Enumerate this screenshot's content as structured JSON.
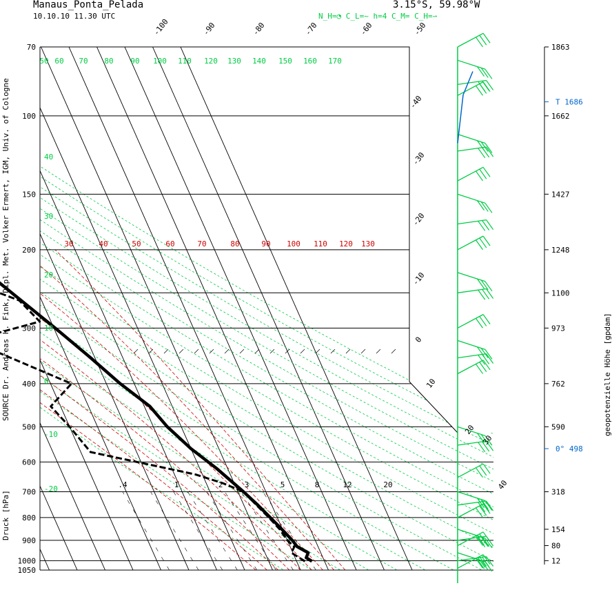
{
  "header": {
    "station": "Manaus_Ponta_Pelada",
    "datetime": "10.10.10 11.30 UTC",
    "coords": "3.15°S, 59.98°W",
    "cloud_info": "N_H=◔  C_L=~  h=4  C_M=   C_H=⇀"
  },
  "side_labels": {
    "source": "SOURCE Dr. Andreas H. Fink, Dipl. Met. Volker Ermert, IGM, Univ. of Cologne",
    "ylabel": "Druck [hPa]",
    "right_label": "geopotenzielle Höhe [gpdam]"
  },
  "colors": {
    "isotherm": "#000000",
    "dry_adiabat": "#00cc44",
    "moist_adiabat": "#cc0000",
    "wind": "#00cc44",
    "tropopause": "#0066cc"
  },
  "chart_data": {
    "type": "line",
    "diagram": "skew-T log-p",
    "pressure_levels": [
      70,
      100,
      150,
      200,
      250,
      300,
      400,
      500,
      600,
      700,
      800,
      900,
      1000,
      1050
    ],
    "pressure_tick_labels": [
      "70",
      "100",
      "150",
      "200",
      "300",
      "400",
      "500",
      "600",
      "700",
      "800",
      "900",
      "1000",
      "1050"
    ],
    "isotherm_labels": [
      "-100",
      "-90",
      "-80",
      "-70",
      "-60",
      "-50",
      "-40",
      "-30",
      "-20",
      "-10",
      "0",
      "10",
      "20",
      "30",
      "40"
    ],
    "theta_labels": [
      "50",
      "60",
      "70",
      "80",
      "90",
      "100",
      "110",
      "120",
      "130",
      "140",
      "150",
      "160",
      "170"
    ],
    "theta_e_labels": [
      "30",
      "40",
      "50",
      "60",
      "70",
      "80",
      "90",
      "100",
      "110",
      "120",
      "130"
    ],
    "mixing_ratio_labels": [
      ".4",
      "1",
      "2",
      "3",
      "5",
      "8",
      "12",
      "20"
    ],
    "left_temp_labels": [
      "40",
      "30",
      "20",
      "10",
      "0",
      "-10",
      "-20"
    ],
    "height_labels": [
      {
        "p": 70,
        "label": "1863"
      },
      {
        "p": 100,
        "label": "1662"
      },
      {
        "p": 150,
        "label": "1427"
      },
      {
        "p": 200,
        "label": "1248"
      },
      {
        "p": 250,
        "label": "1100"
      },
      {
        "p": 300,
        "label": "973"
      },
      {
        "p": 400,
        "label": "762"
      },
      {
        "p": 500,
        "label": "590"
      },
      {
        "p": 700,
        "label": "318"
      },
      {
        "p": 850,
        "label": "154"
      },
      {
        "p": 925,
        "label": "80"
      },
      {
        "p": 1000,
        "label": "12"
      }
    ],
    "tropopause": {
      "p": 93,
      "label": "T 1686"
    },
    "freezing_level": {
      "p": 560,
      "label": "0° 498"
    },
    "series": [
      {
        "kind": "temperature",
        "points": [
          {
            "p": 1003,
            "t": 25.5
          },
          {
            "p": 985,
            "t": 24.0
          },
          {
            "p": 960,
            "t": 25.5
          },
          {
            "p": 930,
            "t": 22.5
          },
          {
            "p": 900,
            "t": 21.8
          },
          {
            "p": 850,
            "t": 19.8
          },
          {
            "p": 800,
            "t": 17.5
          },
          {
            "p": 750,
            "t": 15.0
          },
          {
            "p": 700,
            "t": 12.0
          },
          {
            "p": 620,
            "t": 6.0
          },
          {
            "p": 560,
            "t": 0.0
          },
          {
            "p": 500,
            "t": -5.0
          },
          {
            "p": 450,
            "t": -8.0
          },
          {
            "p": 400,
            "t": -15.0
          },
          {
            "p": 350,
            "t": -21.5
          },
          {
            "p": 300,
            "t": -29.5
          },
          {
            "p": 250,
            "t": -39.5
          },
          {
            "p": 230,
            "t": -44.0
          },
          {
            "p": 200,
            "t": -51.5
          },
          {
            "p": 150,
            "t": -64.5
          },
          {
            "p": 120,
            "t": -72.5
          },
          {
            "p": 100,
            "t": -78.0
          },
          {
            "p": 95,
            "t": -79.0
          },
          {
            "p": 80,
            "t": -72.5
          },
          {
            "p": 75,
            "t": -68.0
          },
          {
            "p": 70,
            "t": -66.5
          }
        ]
      },
      {
        "kind": "dewpoint",
        "points": [
          {
            "p": 1003,
            "t": 23.0
          },
          {
            "p": 985,
            "t": 21.5
          },
          {
            "p": 960,
            "t": 19.5
          },
          {
            "p": 930,
            "t": 21.5
          },
          {
            "p": 900,
            "t": 20.0
          },
          {
            "p": 850,
            "t": 19.0
          },
          {
            "p": 800,
            "t": 17.0
          },
          {
            "p": 750,
            "t": 14.5
          },
          {
            "p": 700,
            "t": 12.0
          },
          {
            "p": 670,
            "t": 6.0
          },
          {
            "p": 640,
            "t": -2.5
          },
          {
            "p": 570,
            "t": -36.5
          },
          {
            "p": 500,
            "t": -40.0
          },
          {
            "p": 450,
            "t": -43.5
          },
          {
            "p": 400,
            "t": -32.5
          },
          {
            "p": 320,
            "t": -62.0
          },
          {
            "p": 290,
            "t": -34.0
          },
          {
            "p": 260,
            "t": -38.0
          },
          {
            "p": 250,
            "t": -44.0
          },
          {
            "p": 240,
            "t": -54.0
          },
          {
            "p": 235,
            "t": -44.5
          },
          {
            "p": 225,
            "t": -46.0
          },
          {
            "p": 200,
            "t": -58.0
          },
          {
            "p": 170,
            "t": -67.0
          },
          {
            "p": 150,
            "t": -75.5
          },
          {
            "p": 110,
            "t": -86.0
          },
          {
            "p": 100,
            "t": -88.0
          },
          {
            "p": 95,
            "t": -88.5
          },
          {
            "p": 80,
            "t": -84.5
          },
          {
            "p": 72,
            "t": -83.0
          },
          {
            "p": 70,
            "t": -81.0
          }
        ]
      }
    ],
    "wind_levels": [
      70,
      75,
      85,
      90,
      110,
      120,
      140,
      150,
      175,
      200,
      225,
      250,
      300,
      320,
      350,
      380,
      500,
      550,
      650,
      700,
      750,
      800,
      850,
      900,
      925,
      960,
      1000,
      1040
    ]
  }
}
